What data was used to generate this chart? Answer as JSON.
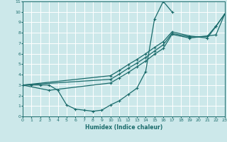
{
  "xlabel": "Humidex (Indice chaleur)",
  "xlim": [
    0,
    23
  ],
  "ylim": [
    0,
    11
  ],
  "xticks": [
    0,
    1,
    2,
    3,
    4,
    5,
    6,
    7,
    8,
    9,
    10,
    11,
    12,
    13,
    14,
    15,
    16,
    17,
    18,
    19,
    20,
    21,
    22,
    23
  ],
  "yticks": [
    0,
    1,
    2,
    3,
    4,
    5,
    6,
    7,
    8,
    9,
    10,
    11
  ],
  "bg_color": "#cce8ea",
  "grid_color": "#ffffff",
  "line_color": "#1a6b6b",
  "curve1": {
    "x": [
      0,
      1,
      2,
      3,
      4,
      5,
      6,
      7,
      8,
      9,
      10,
      11,
      12,
      13,
      14,
      15,
      16,
      17
    ],
    "y": [
      3,
      3,
      3,
      3,
      2.5,
      1.1,
      0.7,
      0.6,
      0.5,
      0.6,
      1.1,
      1.5,
      2.1,
      2.7,
      4.3,
      9.3,
      11.0,
      10.0
    ]
  },
  "curve2": {
    "x": [
      0,
      3,
      10,
      11,
      12,
      13,
      14,
      15,
      16,
      17,
      19,
      22,
      23
    ],
    "y": [
      3,
      2.5,
      3.2,
      3.7,
      4.2,
      4.75,
      5.3,
      5.95,
      6.5,
      7.85,
      7.5,
      7.8,
      9.8
    ]
  },
  "curve3": {
    "x": [
      0,
      10,
      11,
      12,
      13,
      14,
      15,
      16,
      17,
      19,
      21,
      22,
      23
    ],
    "y": [
      3,
      3.55,
      4.05,
      4.6,
      5.1,
      5.65,
      6.25,
      6.85,
      7.95,
      7.6,
      7.65,
      8.65,
      9.8
    ]
  },
  "curve4": {
    "x": [
      0,
      10,
      11,
      12,
      13,
      14,
      15,
      16,
      17,
      19,
      21,
      22,
      23
    ],
    "y": [
      3,
      3.9,
      4.4,
      4.95,
      5.45,
      6.0,
      6.6,
      7.15,
      8.1,
      7.7,
      7.5,
      8.6,
      9.8
    ]
  }
}
